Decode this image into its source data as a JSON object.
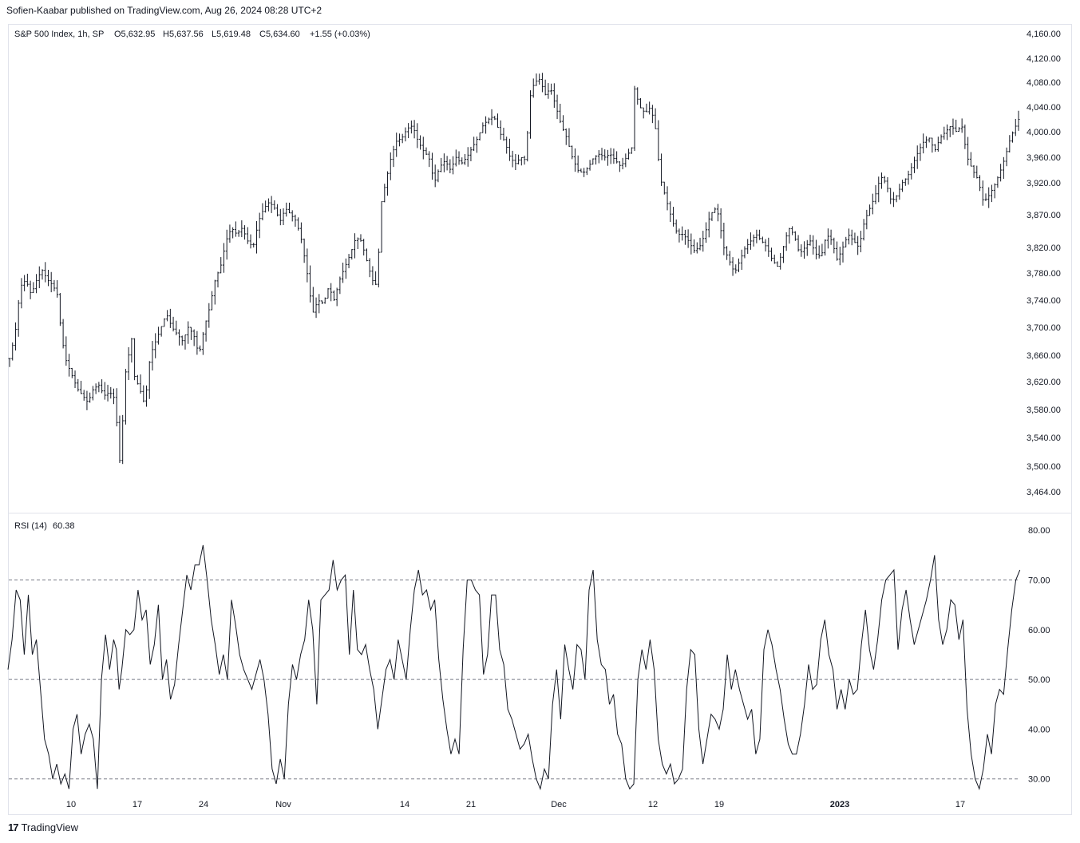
{
  "header": {
    "published": "Sofien-Kaabar published on TradingView.com, Aug 26, 2024 08:28 UTC+2"
  },
  "footer": {
    "brand": "TradingView",
    "logo_glyph": "17"
  },
  "price_pane": {
    "symbol_line": "S&P 500 Index, 1h, SP",
    "ohlc": {
      "open": "O5,632.95",
      "high": "H5,637.56",
      "low": "L5,619.48",
      "close": "C5,634.60",
      "change": "+1.55 (+0.03%)"
    }
  },
  "rsi_pane": {
    "label": "RSI (14)",
    "value": "60.38"
  },
  "colors": {
    "line": "#131722",
    "grid": "#e0e3eb",
    "axis_text": "#131722",
    "dash": "#787b86"
  },
  "chart_data": [
    {
      "type": "ohlc",
      "title": "S&P 500 Index, 1h, SP",
      "xticks": [
        "10",
        "17",
        "24",
        "Nov",
        "14",
        "21",
        "Dec",
        "12",
        "19",
        "2023",
        "17"
      ],
      "yticks": [
        "4,160.00",
        "4,120.00",
        "4,080.00",
        "4,040.00",
        "4,000.00",
        "3,960.00",
        "3,920.00",
        "3,870.00",
        "3,820.00",
        "3,780.00",
        "3,740.00",
        "3,700.00",
        "3,660.00",
        "3,620.00",
        "3,580.00",
        "3,540.00",
        "3,500.00",
        "3,464.00"
      ],
      "close_path": [
        [
          0,
          3655
        ],
        [
          4,
          3690
        ],
        [
          8,
          3760
        ],
        [
          12,
          3770
        ],
        [
          16,
          3748
        ],
        [
          20,
          3770
        ],
        [
          24,
          3785
        ],
        [
          28,
          3770
        ],
        [
          32,
          3762
        ],
        [
          36,
          3745
        ],
        [
          38,
          3690
        ],
        [
          42,
          3650
        ],
        [
          46,
          3630
        ],
        [
          50,
          3610
        ],
        [
          54,
          3600
        ],
        [
          58,
          3590
        ],
        [
          62,
          3610
        ],
        [
          66,
          3615
        ],
        [
          70,
          3600
        ],
        [
          74,
          3605
        ],
        [
          78,
          3595
        ],
        [
          80,
          3540
        ],
        [
          82,
          3495
        ],
        [
          84,
          3580
        ],
        [
          86,
          3640
        ],
        [
          88,
          3660
        ],
        [
          90,
          3690
        ],
        [
          92,
          3630
        ],
        [
          94,
          3620
        ],
        [
          98,
          3600
        ],
        [
          100,
          3585
        ],
        [
          104,
          3660
        ],
        [
          108,
          3680
        ],
        [
          112,
          3700
        ],
        [
          116,
          3720
        ],
        [
          120,
          3700
        ],
        [
          124,
          3690
        ],
        [
          128,
          3680
        ],
        [
          132,
          3700
        ],
        [
          136,
          3690
        ],
        [
          140,
          3660
        ],
        [
          144,
          3700
        ],
        [
          148,
          3730
        ],
        [
          152,
          3770
        ],
        [
          156,
          3790
        ],
        [
          160,
          3830
        ],
        [
          164,
          3850
        ],
        [
          168,
          3840
        ],
        [
          172,
          3850
        ],
        [
          176,
          3830
        ],
        [
          180,
          3820
        ],
        [
          184,
          3860
        ],
        [
          188,
          3880
        ],
        [
          192,
          3890
        ],
        [
          196,
          3880
        ],
        [
          200,
          3860
        ],
        [
          204,
          3880
        ],
        [
          208,
          3870
        ],
        [
          212,
          3860
        ],
        [
          216,
          3830
        ],
        [
          220,
          3780
        ],
        [
          224,
          3720
        ],
        [
          228,
          3740
        ],
        [
          232,
          3735
        ],
        [
          236,
          3760
        ],
        [
          240,
          3740
        ],
        [
          244,
          3770
        ],
        [
          248,
          3790
        ],
        [
          252,
          3810
        ],
        [
          256,
          3835
        ],
        [
          260,
          3830
        ],
        [
          264,
          3800
        ],
        [
          268,
          3770
        ],
        [
          272,
          3760
        ],
        [
          274,
          3880
        ],
        [
          278,
          3920
        ],
        [
          282,
          3960
        ],
        [
          286,
          3985
        ],
        [
          290,
          3990
        ],
        [
          294,
          4005
        ],
        [
          298,
          4010
        ],
        [
          302,
          3985
        ],
        [
          306,
          3970
        ],
        [
          310,
          3960
        ],
        [
          314,
          3920
        ],
        [
          318,
          3945
        ],
        [
          322,
          3955
        ],
        [
          326,
          3940
        ],
        [
          330,
          3960
        ],
        [
          334,
          3950
        ],
        [
          338,
          3960
        ],
        [
          342,
          3975
        ],
        [
          346,
          3990
        ],
        [
          350,
          4010
        ],
        [
          354,
          4020
        ],
        [
          358,
          4025
        ],
        [
          362,
          4000
        ],
        [
          366,
          3985
        ],
        [
          370,
          3960
        ],
        [
          374,
          3950
        ],
        [
          378,
          3960
        ],
        [
          382,
          3955
        ],
        [
          384,
          4050
        ],
        [
          388,
          4080
        ],
        [
          392,
          4085
        ],
        [
          396,
          4060
        ],
        [
          400,
          4070
        ],
        [
          404,
          4040
        ],
        [
          408,
          4010
        ],
        [
          412,
          3990
        ],
        [
          416,
          3960
        ],
        [
          420,
          3940
        ],
        [
          424,
          3935
        ],
        [
          428,
          3945
        ],
        [
          432,
          3960
        ],
        [
          436,
          3965
        ],
        [
          440,
          3960
        ],
        [
          444,
          3965
        ],
        [
          448,
          3955
        ],
        [
          452,
          3945
        ],
        [
          456,
          3960
        ],
        [
          460,
          3975
        ],
        [
          462,
          4070
        ],
        [
          466,
          4040
        ],
        [
          470,
          4030
        ],
        [
          474,
          4040
        ],
        [
          478,
          4000
        ],
        [
          480,
          3950
        ],
        [
          482,
          3920
        ],
        [
          486,
          3890
        ],
        [
          490,
          3860
        ],
        [
          494,
          3840
        ],
        [
          498,
          3840
        ],
        [
          502,
          3830
        ],
        [
          506,
          3815
        ],
        [
          510,
          3820
        ],
        [
          514,
          3840
        ],
        [
          518,
          3870
        ],
        [
          522,
          3880
        ],
        [
          524,
          3870
        ],
        [
          528,
          3820
        ],
        [
          532,
          3800
        ],
        [
          536,
          3780
        ],
        [
          540,
          3800
        ],
        [
          544,
          3820
        ],
        [
          548,
          3830
        ],
        [
          552,
          3840
        ],
        [
          556,
          3830
        ],
        [
          560,
          3820
        ],
        [
          564,
          3800
        ],
        [
          568,
          3790
        ],
        [
          572,
          3820
        ],
        [
          576,
          3850
        ],
        [
          580,
          3840
        ],
        [
          584,
          3810
        ],
        [
          588,
          3820
        ],
        [
          592,
          3830
        ],
        [
          596,
          3810
        ],
        [
          600,
          3805
        ],
        [
          604,
          3840
        ],
        [
          608,
          3830
        ],
        [
          612,
          3800
        ],
        [
          616,
          3820
        ],
        [
          620,
          3840
        ],
        [
          624,
          3830
        ],
        [
          628,
          3820
        ],
        [
          632,
          3860
        ],
        [
          636,
          3880
        ],
        [
          640,
          3900
        ],
        [
          644,
          3930
        ],
        [
          648,
          3920
        ],
        [
          652,
          3890
        ],
        [
          656,
          3900
        ],
        [
          660,
          3920
        ],
        [
          664,
          3930
        ],
        [
          668,
          3950
        ],
        [
          672,
          3970
        ],
        [
          676,
          3985
        ],
        [
          680,
          3990
        ],
        [
          684,
          3970
        ],
        [
          688,
          3990
        ],
        [
          692,
          4000
        ],
        [
          696,
          4010
        ],
        [
          700,
          4000
        ],
        [
          704,
          4010
        ],
        [
          708,
          3960
        ],
        [
          712,
          3940
        ],
        [
          716,
          3925
        ],
        [
          720,
          3890
        ],
        [
          724,
          3900
        ],
        [
          728,
          3915
        ],
        [
          732,
          3935
        ],
        [
          736,
          3960
        ],
        [
          740,
          3990
        ],
        [
          744,
          4010
        ],
        [
          746,
          4020
        ]
      ],
      "n_bars": 747
    },
    {
      "type": "line",
      "title": "RSI (14)",
      "yticks": [
        "80.00",
        "70.00",
        "60.00",
        "50.00",
        "40.00",
        "30.00"
      ],
      "ylim": [
        23.7,
        82.6
      ],
      "reference_lines": [
        70,
        50,
        30
      ],
      "x": [
        0,
        3,
        6,
        9,
        12,
        15,
        18,
        21,
        24,
        27,
        30,
        33,
        36,
        39,
        42,
        45,
        48,
        51,
        54,
        57,
        60,
        63,
        66,
        69,
        72,
        75,
        78,
        80,
        82,
        84,
        87,
        90,
        93,
        96,
        99,
        102,
        105,
        108,
        111,
        114,
        117,
        120,
        123,
        126,
        129,
        132,
        135,
        138,
        141,
        144,
        147,
        150,
        153,
        156,
        159,
        162,
        165,
        168,
        171,
        174,
        177,
        180,
        183,
        186,
        189,
        192,
        195,
        198,
        201,
        204,
        207,
        210,
        213,
        216,
        219,
        222,
        225,
        228,
        231,
        234,
        237,
        240,
        243,
        246,
        249,
        252,
        255,
        258,
        261,
        264,
        267,
        270,
        273,
        276,
        279,
        282,
        285,
        288,
        291,
        294,
        297,
        300,
        303,
        306,
        309,
        312,
        315,
        318,
        321,
        324,
        327,
        330,
        333,
        336,
        339,
        342,
        345,
        348,
        351,
        354,
        357,
        360,
        363,
        366,
        369,
        372,
        375,
        378,
        381,
        384,
        387,
        390,
        393,
        396,
        399,
        402,
        405,
        408,
        411,
        414,
        417,
        420,
        423,
        426,
        429,
        432,
        435,
        438,
        441,
        444,
        447,
        450,
        453,
        456,
        459,
        462,
        465,
        468,
        471,
        474,
        477,
        480,
        483,
        486,
        489,
        492,
        495,
        498,
        501,
        504,
        507,
        510,
        513,
        516,
        519,
        522,
        525,
        528,
        531,
        534,
        537,
        540,
        543,
        546,
        549,
        552,
        555,
        558,
        561,
        564,
        567,
        570,
        573,
        576,
        579,
        582,
        585,
        588,
        591,
        594,
        597,
        600,
        603,
        606,
        609,
        612,
        615,
        618,
        621,
        624,
        627,
        630,
        633,
        636,
        639,
        642,
        645,
        648,
        651,
        654,
        657,
        660,
        663,
        666,
        669,
        672,
        675,
        678,
        681,
        684,
        687,
        690,
        693,
        696,
        699,
        702,
        705,
        708,
        711,
        714,
        717,
        720,
        723,
        726,
        729,
        732,
        735,
        738,
        741,
        744,
        747
      ],
      "values": [
        52,
        58,
        68,
        66,
        55,
        67,
        55,
        58,
        48,
        38,
        35,
        30,
        33,
        29,
        31,
        28,
        40,
        43,
        35,
        39,
        41,
        38,
        28,
        50,
        59,
        52,
        58,
        56,
        48,
        52,
        60,
        59,
        60,
        68,
        62,
        64,
        53,
        57,
        65,
        50,
        54,
        46,
        49,
        57,
        64,
        71,
        68,
        73,
        73,
        77,
        70,
        62,
        57,
        51,
        55,
        50,
        66,
        61,
        55,
        52,
        50,
        48,
        51,
        54,
        50,
        43,
        32,
        29,
        34,
        30,
        45,
        53,
        50,
        55,
        58,
        66,
        60,
        45,
        66,
        67,
        68,
        74,
        68,
        70,
        71,
        55,
        68,
        56,
        55,
        57,
        52,
        48,
        40,
        46,
        52,
        54,
        50,
        58,
        54,
        50,
        60,
        68,
        72,
        67,
        68,
        64,
        66,
        54,
        46,
        40,
        35,
        38,
        35,
        56,
        70,
        70,
        68,
        67,
        51,
        55,
        67,
        67,
        56,
        53,
        44,
        42,
        39,
        36,
        37,
        39,
        34,
        30,
        28,
        32,
        30,
        45,
        52,
        42,
        57,
        52,
        48,
        57,
        56,
        50,
        68,
        72,
        58,
        53,
        52,
        45,
        47,
        39,
        37,
        30,
        28,
        29,
        50,
        56,
        52,
        58,
        52,
        38,
        33,
        31,
        33,
        29,
        30,
        32,
        48,
        56,
        55,
        40,
        33,
        38,
        43,
        42,
        40,
        44,
        55,
        48,
        52,
        48,
        45,
        42,
        44,
        35,
        38,
        56,
        60,
        57,
        52,
        48,
        42,
        37,
        35,
        35,
        39,
        45,
        53,
        48,
        49,
        58,
        62,
        55,
        52,
        44,
        48,
        44,
        50,
        47,
        48,
        57,
        64,
        56,
        52,
        58,
        66,
        70,
        71,
        72,
        56,
        64,
        68,
        62,
        57,
        60,
        63,
        66,
        70,
        75,
        62,
        57,
        60,
        66,
        65,
        58,
        62,
        44,
        35,
        30,
        28,
        32,
        39,
        35,
        45,
        48,
        47,
        56,
        64,
        70,
        72
      ]
    }
  ]
}
